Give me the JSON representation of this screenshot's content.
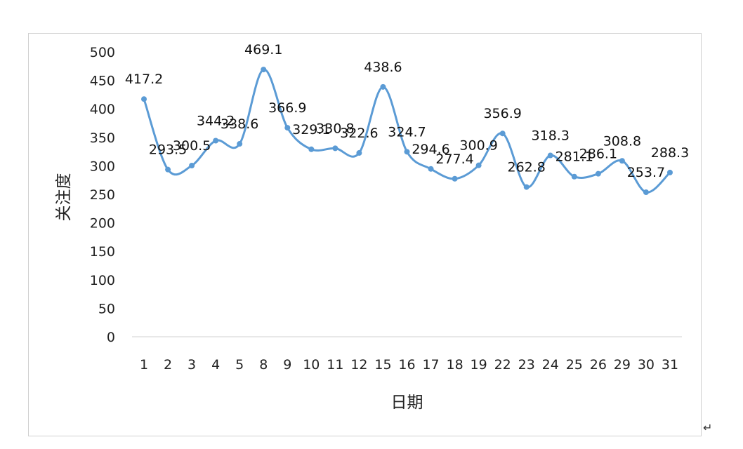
{
  "chart_data": {
    "type": "line",
    "title": "",
    "xlabel": "日期",
    "ylabel": "关注度",
    "ylim": [
      0,
      500
    ],
    "yticks": [
      "0",
      "50",
      "100",
      "150",
      "200",
      "250",
      "300",
      "350",
      "400",
      "450",
      "500"
    ],
    "categories": [
      "1",
      "2",
      "3",
      "4",
      "5",
      "8",
      "9",
      "10",
      "11",
      "12",
      "15",
      "16",
      "17",
      "18",
      "19",
      "22",
      "23",
      "24",
      "25",
      "26",
      "29",
      "30",
      "31"
    ],
    "series": [
      {
        "values": [
          417.2,
          293.5,
          300.5,
          344.2,
          338.6,
          469.1,
          366.9,
          329.1,
          330.8,
          322.6,
          438.6,
          324.7,
          294.6,
          277.4,
          300.9,
          356.9,
          262.8,
          318.3,
          281.1,
          286.1,
          308.8,
          253.7,
          288.3
        ],
        "labels": [
          "417.2",
          "293.5",
          "300.5",
          "344.2",
          "338.6",
          "469.1",
          "366.9",
          "329.1",
          "330.8",
          "322.6",
          "438.6",
          "324.7",
          "294.6",
          "277.4",
          "300.9",
          "356.9",
          "262.8",
          "318.3",
          "281.1",
          "286.1",
          "308.8",
          "253.7",
          "288.3"
        ]
      }
    ],
    "line_color": "#5b9bd5",
    "grid": false,
    "legend": "none"
  },
  "decor": {
    "return_mark": "↵"
  }
}
